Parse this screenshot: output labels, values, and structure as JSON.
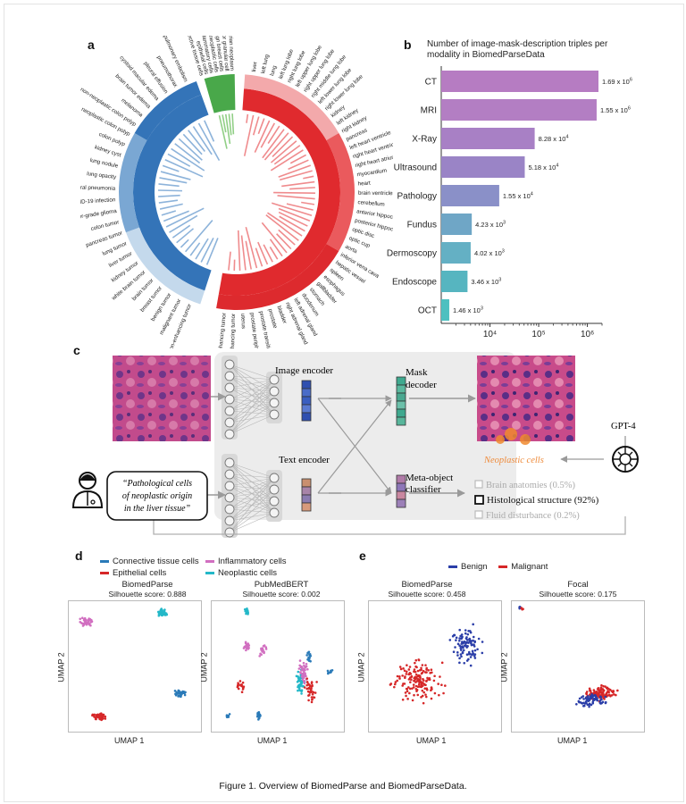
{
  "panels": {
    "a": "a",
    "b": "b",
    "c": "c",
    "d": "d",
    "e": "e"
  },
  "caption": "Figure 1. Overview of BiomedParse and BiomedParseData.",
  "panel_a": {
    "labels_right": [
      "liver",
      "left lung",
      "lung",
      "left lung lobe",
      "right lung lobe",
      "left upper lung lobe",
      "right upper lung lobe",
      "right middle lung lobe",
      "left lower lung lobe",
      "right lower lung lobe",
      "kidney",
      "left kidney",
      "right kidney",
      "pancreas",
      "left heart ventricle",
      "right heart ventricle",
      "right heart atrium",
      "myocardium",
      "heart",
      "brain ventricles",
      "cerebellum",
      "anterior hippocampus",
      "posterior hippocampus",
      "optic disc",
      "optic cup",
      "aorta",
      "inferior vena cava",
      "hepatic vessel",
      "spleen",
      "esophagus",
      "gallbladder",
      "stomach",
      "duodenum",
      "left adrenal gland",
      "right adrenal gland",
      "bladder",
      "prostate",
      "prostate transitional zone",
      "prostate peripheral zone",
      "uterus",
      "enhancing tumor",
      "non-enhancing tumor"
    ],
    "labels_left": [
      "pulmonary embolism",
      "pneumothorax",
      "pleural effusion",
      "cystoid macular edema",
      "brain tumor edema",
      "melanoma",
      "non-neoplastic colon polyp",
      "neoplastic colon polyp",
      "colon polyp",
      "kidney cyst",
      "lung nodule",
      "lung opacity",
      "viral pneumonia",
      "COVID-19 infection",
      "lower-grade glioma",
      "colon tumor",
      "pancreas tumor",
      "lung tumor",
      "liver tumor",
      "kidney tumor",
      "white brain tumor",
      "brain tumor",
      "breast tumor",
      "benign tumor",
      "malignant tumor",
      "non-enhancing tumor"
    ],
    "labels_top": [
      "connective tissue cells",
      "epithelial cells",
      "inflammatory cells",
      "neoplastic cells",
      "benign breast cells",
      "color granular cell",
      "ovarian neoplasm"
    ]
  },
  "panel_b": {
    "title": "Number of image-mask-description triples per modality in BiomedParseData",
    "tick_labels": [
      "10⁴",
      "10⁵",
      "10⁶"
    ]
  },
  "chart_data": {
    "type": "bar",
    "title": "Number of image-mask-description triples per modality in BiomedParseData",
    "orientation": "horizontal",
    "scale": "log",
    "xlim": [
      1000,
      2000000
    ],
    "categories": [
      "CT",
      "MRI",
      "X-Ray",
      "Ultrasound",
      "Pathology",
      "Fundus",
      "Dermoscopy",
      "Endoscope",
      "OCT"
    ],
    "values": [
      1690000,
      1550000,
      82800,
      51800,
      15500,
      4230,
      4020,
      3460,
      1460
    ],
    "value_labels": [
      {
        "m": "1.69 x 10",
        "e": "6"
      },
      {
        "m": "1.55 x 10",
        "e": "6"
      },
      {
        "m": "8.28 x 10",
        "e": "4"
      },
      {
        "m": "5.18 x 10",
        "e": "4"
      },
      {
        "m": "1.55 x 10",
        "e": "4"
      },
      {
        "m": "4.23 x 10",
        "e": "3"
      },
      {
        "m": "4.02 x 10",
        "e": "3"
      },
      {
        "m": "3.46 x 10",
        "e": "3"
      },
      {
        "m": "1.46 x 10",
        "e": "3"
      }
    ],
    "colors": [
      "#b67cc2",
      "#b37ec3",
      "#a880c5",
      "#9a84c6",
      "#8a90c8",
      "#6fa6c6",
      "#64b0c4",
      "#56b5c0",
      "#4ec0c0"
    ]
  },
  "panel_c": {
    "image_encoder": "Image encoder",
    "text_encoder": "Text encoder",
    "mask_decoder_1": "Mask",
    "mask_decoder_2": "decoder",
    "meta_1": "Meta-object",
    "meta_2": "classifier",
    "prompt_1": "“Pathological cells",
    "prompt_2": "of neoplastic origin",
    "prompt_3": "in the liver tissue”",
    "neoplastic": "Neoplastic cells",
    "gpt": "GPT-4",
    "class_1": "Brain anatomies (0.5%)",
    "class_2": "Histological structure (92%)",
    "class_3": "Fluid disturbance (0.2%)"
  },
  "panel_d": {
    "legend": [
      "Connective tissue cells",
      "Inflammatory cells",
      "Epithelial cells",
      "Neoplastic cells"
    ],
    "legend_colors": [
      "#2a7ab8",
      "#d16fc0",
      "#d62728",
      "#24b8c8"
    ],
    "plots": [
      {
        "title": "BiomedParse",
        "score": "Silhouette score: 0.888"
      },
      {
        "title": "PubMedBERT",
        "score": "Silhouette score: 0.002"
      }
    ],
    "xlabel": "UMAP 1",
    "ylabel": "UMAP 2"
  },
  "panel_e": {
    "legend": [
      "Benign",
      "Malignant"
    ],
    "legend_colors": [
      "#2b3ea8",
      "#d62728"
    ],
    "plots": [
      {
        "title": "BiomedParse",
        "score": "Silhouette score: 0.458"
      },
      {
        "title": "Focal",
        "score": "Silhouette score: 0.175"
      }
    ],
    "xlabel": "UMAP 1",
    "ylabel": "UMAP 2"
  }
}
